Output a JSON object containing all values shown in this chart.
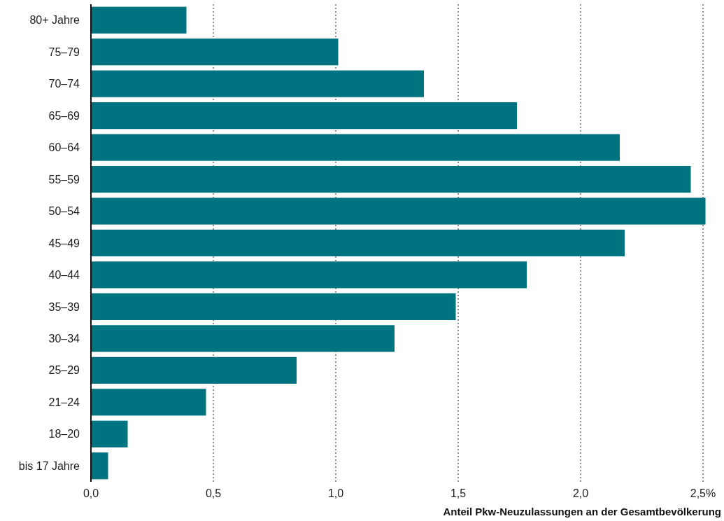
{
  "chart_data": {
    "type": "bar",
    "orientation": "horizontal",
    "xlabel": "Anteil Pkw-Neuzulassungen an der Gesamtbevölkerung",
    "categories": [
      "80+ Jahre",
      "75–79",
      "70–74",
      "65–69",
      "60–64",
      "55–59",
      "50–54",
      "45–49",
      "40–44",
      "35–39",
      "30–34",
      "25–29",
      "21–24",
      "18–20",
      "bis 17 Jahre"
    ],
    "values": [
      0.39,
      1.01,
      1.36,
      1.74,
      2.16,
      2.45,
      2.51,
      2.18,
      1.78,
      1.49,
      1.24,
      0.84,
      0.47,
      0.15,
      0.07
    ],
    "color": "#007381",
    "xlim": [
      0,
      2.52
    ],
    "xticks": [
      {
        "value": 0,
        "label": "0,0"
      },
      {
        "value": 0.5,
        "label": "0,5"
      },
      {
        "value": 1,
        "label": "1,0"
      },
      {
        "value": 1.5,
        "label": "1,5"
      },
      {
        "value": 2,
        "label": "2,0"
      },
      {
        "value": 2.5,
        "label": "2,5%"
      }
    ],
    "grid": "x"
  }
}
